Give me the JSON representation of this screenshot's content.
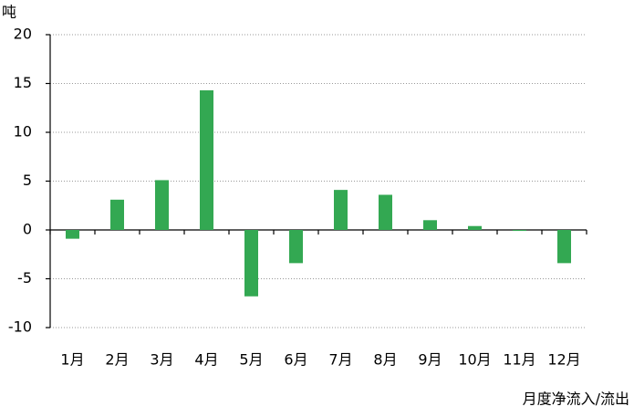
{
  "chart_data": {
    "type": "bar",
    "y_unit_label": "吨",
    "x_label": "月度净流入/流出",
    "categories": [
      "1月",
      "2月",
      "3月",
      "4月",
      "5月",
      "6月",
      "7月",
      "8月",
      "9月",
      "10月",
      "11月",
      "12月"
    ],
    "values": [
      -0.9,
      3.1,
      5.1,
      14.3,
      -6.8,
      -3.4,
      4.1,
      3.6,
      1.0,
      0.4,
      -0.1,
      -3.4
    ],
    "color": "#33a852",
    "ylim": [
      -10,
      20
    ],
    "yticks": [
      -10,
      -5,
      0,
      5,
      10,
      15,
      20
    ],
    "grid": true
  }
}
